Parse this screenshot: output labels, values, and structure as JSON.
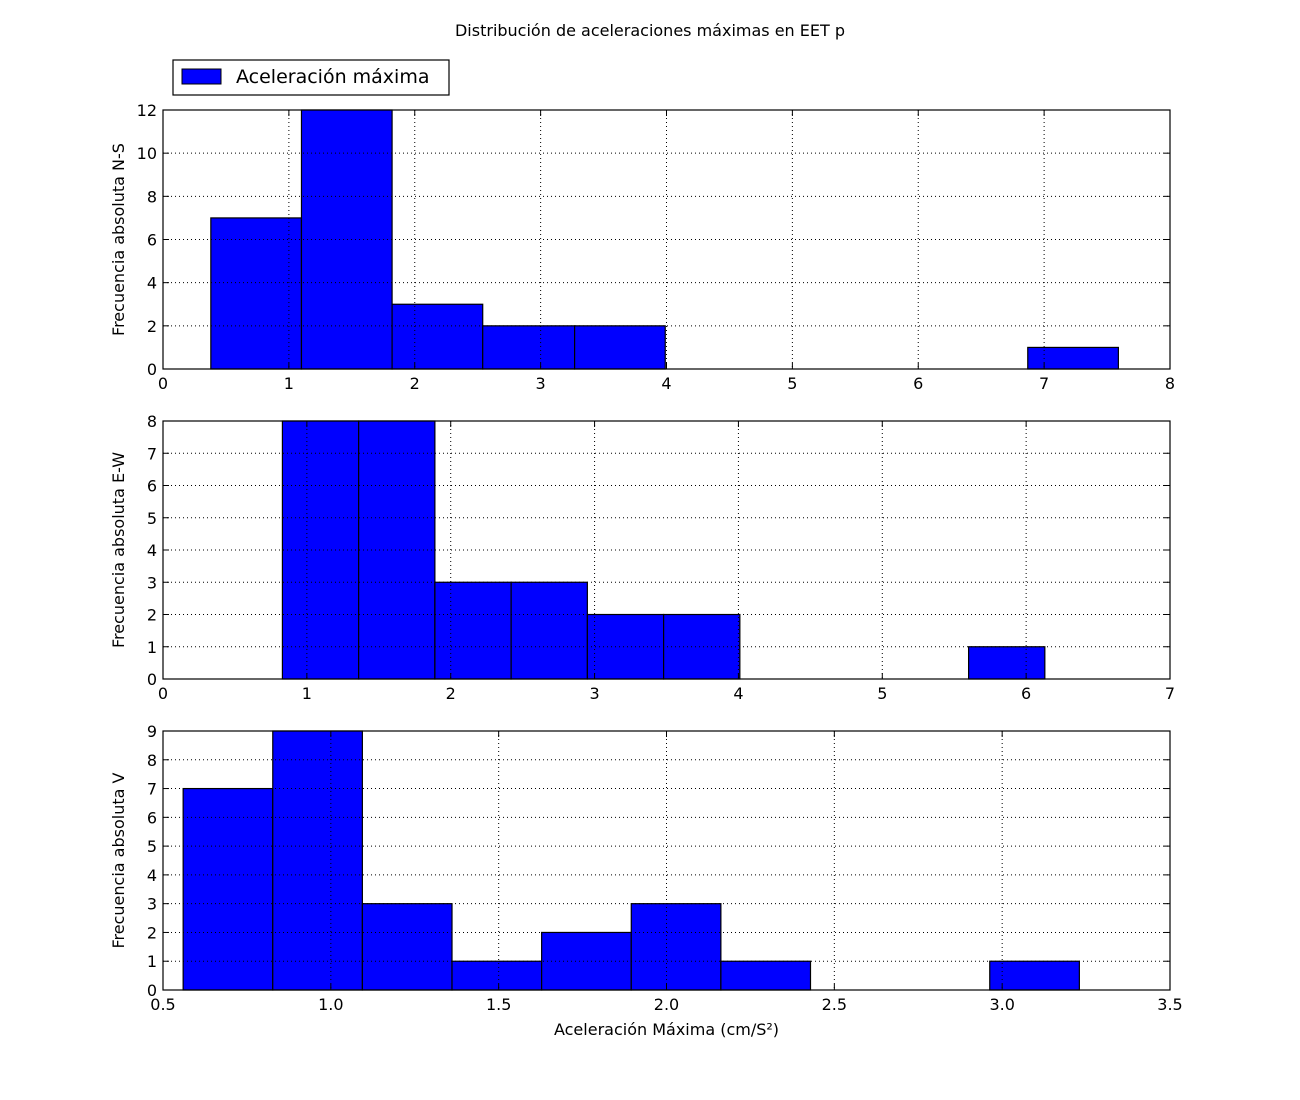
{
  "figure": {
    "title": "Distribución de aceleraciones máximas en EET p"
  },
  "legend": {
    "label": "Aceleración máxima",
    "placement": "upper-left-above-first-axes",
    "color": "#0000ff"
  },
  "colors": {
    "bar_fill": "#0000ff",
    "bar_edge": "#000000",
    "background": "#ffffff"
  },
  "chart_data": [
    {
      "type": "bar",
      "id": "ns",
      "ylabel": "Frecuencia absoluta N-S",
      "xlabel": "",
      "xlim": [
        0,
        8
      ],
      "ylim": [
        0,
        12
      ],
      "xticks": [
        "0",
        "1",
        "2",
        "3",
        "4",
        "5",
        "6",
        "7",
        "8"
      ],
      "xtick_values": [
        0,
        1,
        2,
        3,
        4,
        5,
        6,
        7,
        8
      ],
      "yticks": [
        "0",
        "2",
        "4",
        "6",
        "8",
        "10",
        "12"
      ],
      "ytick_values": [
        0,
        2,
        4,
        6,
        8,
        10,
        12
      ],
      "grid": true,
      "bin_edges": [
        0.38,
        1.1,
        1.82,
        2.54,
        3.27,
        3.99,
        4.71,
        5.43,
        6.15,
        6.87,
        7.59
      ],
      "values": [
        7,
        12,
        3,
        2,
        2,
        0,
        0,
        0,
        0,
        1
      ]
    },
    {
      "type": "bar",
      "id": "ew",
      "ylabel": "Frecuencia absoluta E-W",
      "xlabel": "",
      "xlim": [
        0,
        7
      ],
      "ylim": [
        0,
        8
      ],
      "xticks": [
        "0",
        "1",
        "2",
        "3",
        "4",
        "5",
        "6",
        "7"
      ],
      "xtick_values": [
        0,
        1,
        2,
        3,
        4,
        5,
        6,
        7
      ],
      "yticks": [
        "0",
        "1",
        "2",
        "3",
        "4",
        "5",
        "6",
        "7",
        "8"
      ],
      "ytick_values": [
        0,
        1,
        2,
        3,
        4,
        5,
        6,
        7,
        8
      ],
      "grid": true,
      "bin_edges": [
        0.83,
        1.36,
        1.89,
        2.42,
        2.95,
        3.48,
        4.01,
        4.54,
        5.07,
        5.6,
        6.13
      ],
      "values": [
        8,
        8,
        3,
        3,
        2,
        2,
        0,
        0,
        0,
        1
      ]
    },
    {
      "type": "bar",
      "id": "v",
      "ylabel": "Frecuencia absoluta V",
      "xlabel": "Aceleración Máxima (cm/S²)",
      "xlim": [
        0.5,
        3.5
      ],
      "ylim": [
        0,
        9
      ],
      "xticks": [
        "0.5",
        "1.0",
        "1.5",
        "2.0",
        "2.5",
        "3.0",
        "3.5"
      ],
      "xtick_values": [
        0.5,
        1.0,
        1.5,
        2.0,
        2.5,
        3.0,
        3.5
      ],
      "yticks": [
        "0",
        "1",
        "2",
        "3",
        "4",
        "5",
        "6",
        "7",
        "8",
        "9"
      ],
      "ytick_values": [
        0,
        1,
        2,
        3,
        4,
        5,
        6,
        7,
        8,
        9
      ],
      "grid": true,
      "bin_edges": [
        0.56,
        0.827,
        1.094,
        1.361,
        1.628,
        1.895,
        2.162,
        2.429,
        2.696,
        2.963,
        3.23
      ],
      "values": [
        7,
        9,
        3,
        1,
        2,
        3,
        1,
        0,
        0,
        1
      ]
    }
  ]
}
